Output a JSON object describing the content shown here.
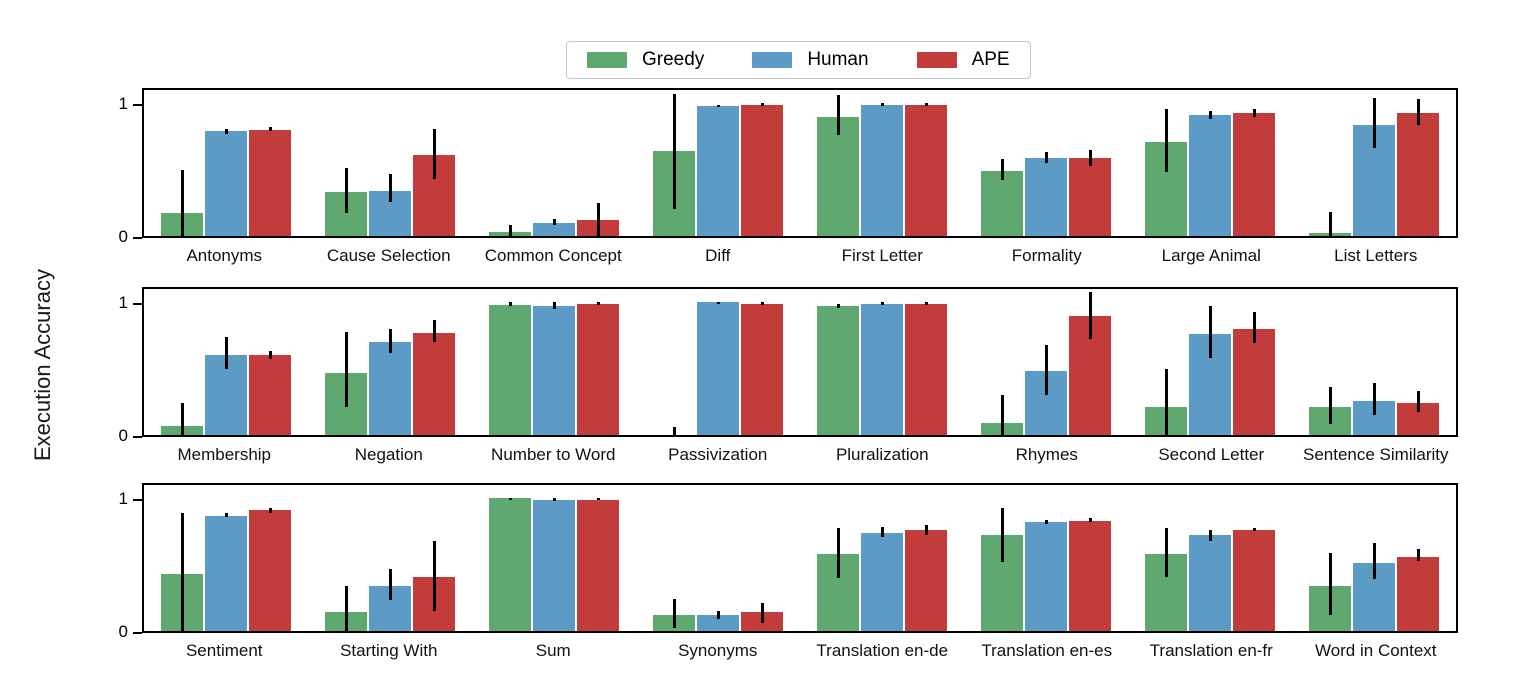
{
  "figure": {
    "ylabel": "Execution Accuracy"
  },
  "legend": {
    "entries": [
      {
        "label": "Greedy",
        "color": "#5fa971"
      },
      {
        "label": "Human",
        "color": "#5d9bc7"
      },
      {
        "label": "APE",
        "color": "#c23c3c"
      }
    ]
  },
  "chart_data": {
    "type": "bar",
    "title": "",
    "xlabel": "",
    "ylabel": "Execution Accuracy",
    "ylim": [
      0,
      1.1
    ],
    "yticks": [
      0,
      1
    ],
    "grid": false,
    "legend_position": "top-center",
    "error_bars": true,
    "series": [
      "Greedy",
      "Human",
      "APE"
    ],
    "colors": [
      "#5fa971",
      "#5d9bc7",
      "#c23c3c"
    ],
    "rows": [
      {
        "categories": [
          "Antonyms",
          "Cause Selection",
          "Common Concept",
          "Diff",
          "First Letter",
          "Formality",
          "Large Animal",
          "List Letters"
        ],
        "groups": [
          {
            "label": "Antonyms",
            "values": [
              0.17,
              0.79,
              0.8
            ],
            "err_lo": [
              0.0,
              0.77,
              0.79
            ],
            "err_hi": [
              0.5,
              0.81,
              0.82
            ]
          },
          {
            "label": "Cause Selection",
            "values": [
              0.33,
              0.34,
              0.61
            ],
            "err_lo": [
              0.17,
              0.26,
              0.43
            ],
            "err_hi": [
              0.51,
              0.47,
              0.81
            ]
          },
          {
            "label": "Common Concept",
            "values": [
              0.03,
              0.1,
              0.12
            ],
            "err_lo": [
              0.0,
              0.08,
              0.0
            ],
            "err_hi": [
              0.08,
              0.13,
              0.25
            ]
          },
          {
            "label": "Diff",
            "values": [
              0.64,
              0.98,
              0.99
            ],
            "err_lo": [
              0.2,
              0.97,
              0.98
            ],
            "err_hi": [
              1.07,
              0.99,
              1.0
            ]
          },
          {
            "label": "First Letter",
            "values": [
              0.9,
              0.99,
              0.99
            ],
            "err_lo": [
              0.76,
              0.98,
              0.98
            ],
            "err_hi": [
              1.06,
              1.0,
              1.0
            ]
          },
          {
            "label": "Formality",
            "values": [
              0.49,
              0.59,
              0.59
            ],
            "err_lo": [
              0.42,
              0.55,
              0.53
            ],
            "err_hi": [
              0.58,
              0.63,
              0.65
            ]
          },
          {
            "label": "Large Animal",
            "values": [
              0.71,
              0.91,
              0.93
            ],
            "err_lo": [
              0.48,
              0.88,
              0.9
            ],
            "err_hi": [
              0.96,
              0.94,
              0.96
            ]
          },
          {
            "label": "List Letters",
            "values": [
              0.02,
              0.84,
              0.93
            ],
            "err_lo": [
              0.0,
              0.66,
              0.84
            ],
            "err_hi": [
              0.18,
              1.04,
              1.03
            ]
          }
        ]
      },
      {
        "categories": [
          "Membership",
          "Negation",
          "Number to Word",
          "Passivization",
          "Pluralization",
          "Rhymes",
          "Second Letter",
          "Sentence Similarity"
        ],
        "groups": [
          {
            "label": "Membership",
            "values": [
              0.07,
              0.6,
              0.6
            ],
            "err_lo": [
              0.0,
              0.5,
              0.57
            ],
            "err_hi": [
              0.24,
              0.74,
              0.63
            ]
          },
          {
            "label": "Negation",
            "values": [
              0.47,
              0.7,
              0.77
            ],
            "err_lo": [
              0.21,
              0.62,
              0.7
            ],
            "err_hi": [
              0.78,
              0.8,
              0.87
            ]
          },
          {
            "label": "Number to Word",
            "values": [
              0.98,
              0.97,
              0.99
            ],
            "err_lo": [
              0.97,
              0.95,
              0.98
            ],
            "err_hi": [
              1.0,
              1.0,
              1.0
            ]
          },
          {
            "label": "Passivization",
            "values": [
              0.0,
              1.0,
              0.99
            ],
            "err_lo": [
              0.0,
              0.99,
              0.98
            ],
            "err_hi": [
              0.06,
              1.0,
              1.0
            ]
          },
          {
            "label": "Pluralization",
            "values": [
              0.97,
              0.99,
              0.99
            ],
            "err_lo": [
              0.96,
              0.98,
              0.98
            ],
            "err_hi": [
              0.99,
              1.0,
              1.0
            ]
          },
          {
            "label": "Rhymes",
            "values": [
              0.09,
              0.48,
              0.9
            ],
            "err_lo": [
              0.0,
              0.3,
              0.72
            ],
            "err_hi": [
              0.3,
              0.68,
              1.08
            ]
          },
          {
            "label": "Second Letter",
            "values": [
              0.21,
              0.76,
              0.8
            ],
            "err_lo": [
              0.0,
              0.58,
              0.69
            ],
            "err_hi": [
              0.5,
              0.97,
              0.93
            ]
          },
          {
            "label": "Sentence Similarity",
            "values": [
              0.21,
              0.26,
              0.24
            ],
            "err_lo": [
              0.08,
              0.15,
              0.17
            ],
            "err_hi": [
              0.36,
              0.39,
              0.33
            ]
          }
        ]
      },
      {
        "categories": [
          "Sentiment",
          "Starting With",
          "Sum",
          "Synonyms",
          "Translation en-de",
          "Translation en-es",
          "Translation en-fr",
          "Word in Context"
        ],
        "groups": [
          {
            "label": "Sentiment",
            "values": [
              0.43,
              0.87,
              0.91
            ],
            "err_lo": [
              0.0,
              0.86,
              0.89
            ],
            "err_hi": [
              0.89,
              0.89,
              0.93
            ]
          },
          {
            "label": "Starting With",
            "values": [
              0.14,
              0.34,
              0.41
            ],
            "err_lo": [
              0.0,
              0.23,
              0.15
            ],
            "err_hi": [
              0.34,
              0.47,
              0.68
            ]
          },
          {
            "label": "Sum",
            "values": [
              1.0,
              0.99,
              0.99
            ],
            "err_lo": [
              0.99,
              0.98,
              0.99
            ],
            "err_hi": [
              1.0,
              1.0,
              1.0
            ]
          },
          {
            "label": "Synonyms",
            "values": [
              0.12,
              0.12,
              0.14
            ],
            "err_lo": [
              0.02,
              0.09,
              0.06
            ],
            "err_hi": [
              0.24,
              0.15,
              0.21
            ]
          },
          {
            "label": "Translation en-de",
            "values": [
              0.58,
              0.74,
              0.76
            ],
            "err_lo": [
              0.4,
              0.71,
              0.72
            ],
            "err_hi": [
              0.78,
              0.78,
              0.8
            ]
          },
          {
            "label": "Translation en-es",
            "values": [
              0.72,
              0.82,
              0.83
            ],
            "err_lo": [
              0.52,
              0.81,
              0.82
            ],
            "err_hi": [
              0.93,
              0.84,
              0.85
            ]
          },
          {
            "label": "Translation en-fr",
            "values": [
              0.58,
              0.72,
              0.76
            ],
            "err_lo": [
              0.41,
              0.68,
              0.75
            ],
            "err_hi": [
              0.78,
              0.76,
              0.78
            ]
          },
          {
            "label": "Word in Context",
            "values": [
              0.34,
              0.51,
              0.56
            ],
            "err_lo": [
              0.12,
              0.39,
              0.53
            ],
            "err_hi": [
              0.59,
              0.66,
              0.62
            ]
          }
        ]
      }
    ]
  }
}
